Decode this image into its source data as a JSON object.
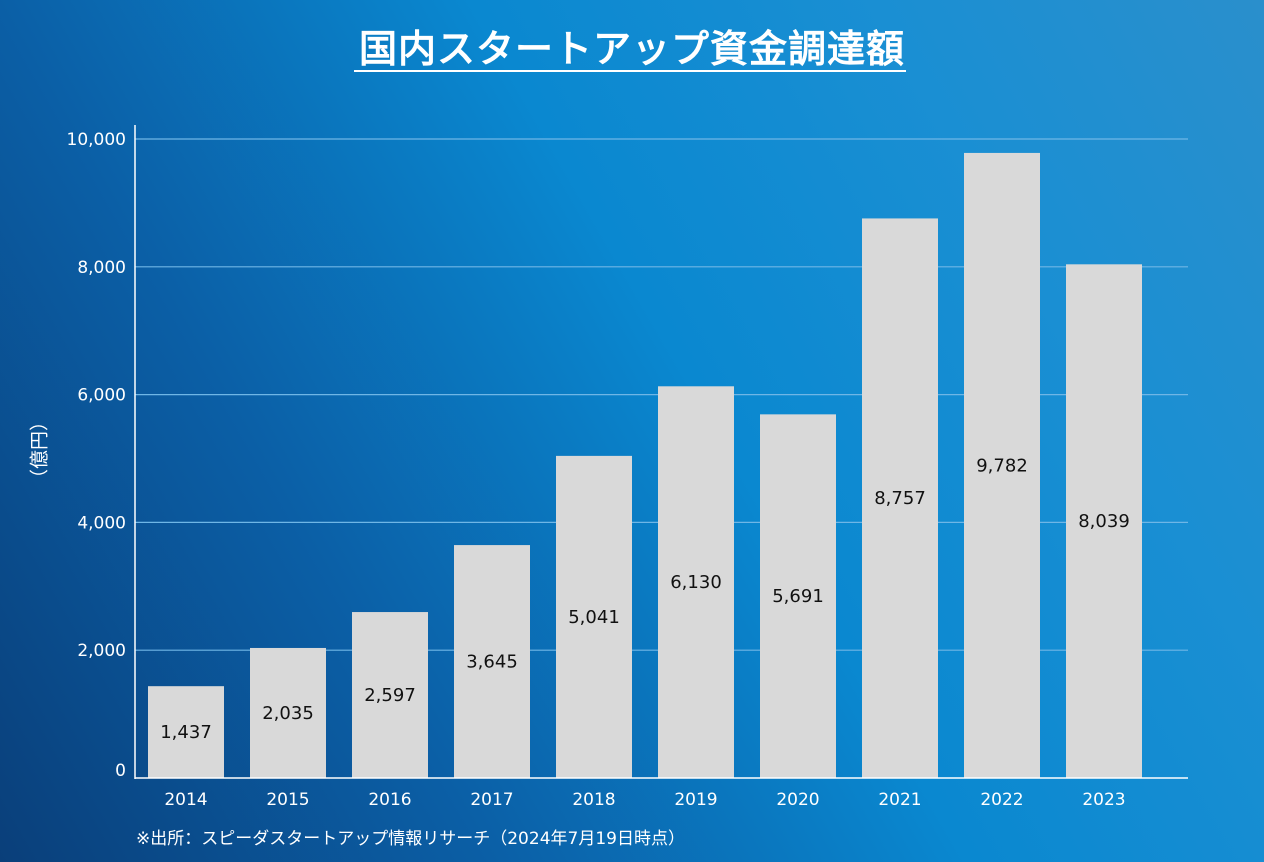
{
  "chart_data": {
    "type": "bar",
    "title": "国内スタートアップ資金調達額",
    "ylabel": "（億円）",
    "xlabel": "",
    "categories": [
      "2014",
      "2015",
      "2016",
      "2017",
      "2018",
      "2019",
      "2020",
      "2021",
      "2022",
      "2023"
    ],
    "values": [
      1437,
      2035,
      2597,
      3645,
      5041,
      6130,
      5691,
      8757,
      9782,
      8039
    ],
    "value_labels": [
      "1,437",
      "2,035",
      "2,597",
      "3,645",
      "5,041",
      "6,130",
      "5,691",
      "8,757",
      "9,782",
      "8,039"
    ],
    "ylim": [
      0,
      10000
    ],
    "yticks": [
      0,
      2000,
      4000,
      6000,
      8000,
      10000
    ],
    "ytick_labels": [
      "0",
      "2,000",
      "4,000",
      "6,000",
      "8,000",
      "10,000"
    ],
    "grid": true,
    "bar_color": "#d9d9d9",
    "gridline_color": "#6fb6e6",
    "axis_color": "#ffffff",
    "label_color": "#111111",
    "source": "※出所：スピーダスタートアップ情報リサーチ（2024年7月19日時点）"
  }
}
